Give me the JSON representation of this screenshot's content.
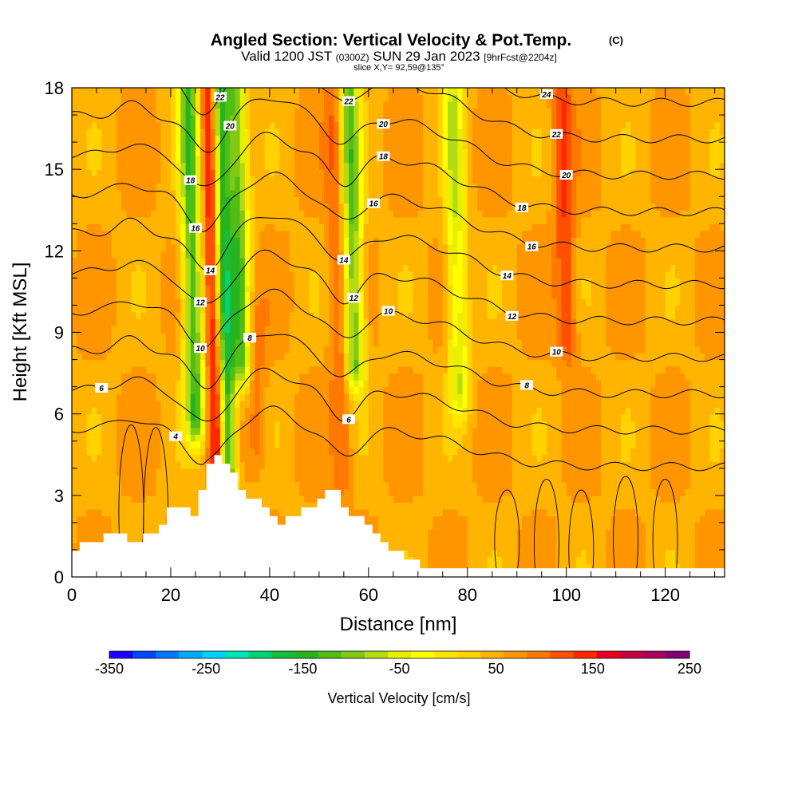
{
  "chart_data": {
    "type": "heatmap",
    "title": "Angled Section: Vertical Velocity & Pot.Temp.",
    "title_units": "(C)",
    "subtitle": {
      "lead": "Valid 1200 JST",
      "zulu": "(0300Z)",
      "date": "SUN 29 Jan 2023",
      "forecast": "[9hrFcst@2204z]"
    },
    "slice_info": "slice X,Y= 92,59@135°",
    "xlabel": "Distance [nm]",
    "ylabel": "Height [Kft MSL]",
    "xlim": [
      0,
      132
    ],
    "ylim": [
      0,
      18
    ],
    "x_ticks": [
      0,
      20,
      40,
      60,
      80,
      100,
      120
    ],
    "y_ticks": [
      0,
      3,
      6,
      9,
      12,
      15,
      18
    ],
    "colorbar": {
      "title": "Vertical Velocity [cm/s]",
      "range": [
        -350,
        250
      ],
      "labels": [
        "-350",
        "-250",
        "-150",
        "-50",
        "50",
        "150",
        "250"
      ],
      "colors": [
        "#1e00ff",
        "#0046ff",
        "#0078ff",
        "#00aaff",
        "#00d2ff",
        "#00e6b4",
        "#00d278",
        "#14be3c",
        "#28b41e",
        "#50be14",
        "#82c814",
        "#b4dc14",
        "#e6f000",
        "#ffff00",
        "#ffe600",
        "#ffd200",
        "#ffb400",
        "#ff9600",
        "#ff7800",
        "#ff5000",
        "#ff2800",
        "#e6001e",
        "#c8003c",
        "#aa005a",
        "#820078"
      ]
    },
    "velocity_features": [
      {
        "x": 24.5,
        "z_min": 6,
        "z_max": 18,
        "w": -130
      },
      {
        "x": 28.5,
        "z_min": 4.5,
        "z_max": 18,
        "w": 160
      },
      {
        "x": 31,
        "z_min": 4,
        "z_max": 18,
        "w": -150
      },
      {
        "x": 34,
        "z_min": 8,
        "z_max": 18,
        "w": -120
      },
      {
        "x": 37,
        "z_min": 5,
        "z_max": 9,
        "w": 100
      },
      {
        "x": 54,
        "z_min": 4,
        "z_max": 18,
        "w": 110
      },
      {
        "x": 57,
        "z_min": 8,
        "z_max": 18,
        "w": -120
      },
      {
        "x": 78,
        "z_min": 7,
        "z_max": 18,
        "w": -60
      },
      {
        "x": 100,
        "z_min": 9,
        "z_max": 18,
        "w": 130
      }
    ],
    "isentropes_c": [
      {
        "value": 4,
        "label": "4"
      },
      {
        "value": 6,
        "label": "6"
      },
      {
        "value": 8,
        "label": "8"
      },
      {
        "value": 10,
        "label": "10"
      },
      {
        "value": 12,
        "label": "12"
      },
      {
        "value": 14,
        "label": "14"
      },
      {
        "value": 16,
        "label": "16"
      },
      {
        "value": 18,
        "label": "18"
      },
      {
        "value": 20,
        "label": "20"
      },
      {
        "value": 22,
        "label": "22"
      },
      {
        "value": 24,
        "label": "24"
      }
    ],
    "terrain": [
      {
        "x": 0,
        "z": 1
      },
      {
        "x": 4,
        "z": 1.3
      },
      {
        "x": 8,
        "z": 1.6
      },
      {
        "x": 12,
        "z": 1.3
      },
      {
        "x": 16,
        "z": 1.6
      },
      {
        "x": 20,
        "z": 2.6
      },
      {
        "x": 24,
        "z": 2.3
      },
      {
        "x": 28,
        "z": 4.8
      },
      {
        "x": 31,
        "z": 4.1
      },
      {
        "x": 34,
        "z": 3.1
      },
      {
        "x": 38,
        "z": 2.6
      },
      {
        "x": 42,
        "z": 2.0
      },
      {
        "x": 48,
        "z": 2.6
      },
      {
        "x": 52,
        "z": 3.5
      },
      {
        "x": 55,
        "z": 2.3
      },
      {
        "x": 58,
        "z": 2.3
      },
      {
        "x": 62,
        "z": 1.3
      },
      {
        "x": 68,
        "z": 0.6
      },
      {
        "x": 72,
        "z": 0.3
      },
      {
        "x": 132,
        "z": 0.3
      }
    ]
  }
}
